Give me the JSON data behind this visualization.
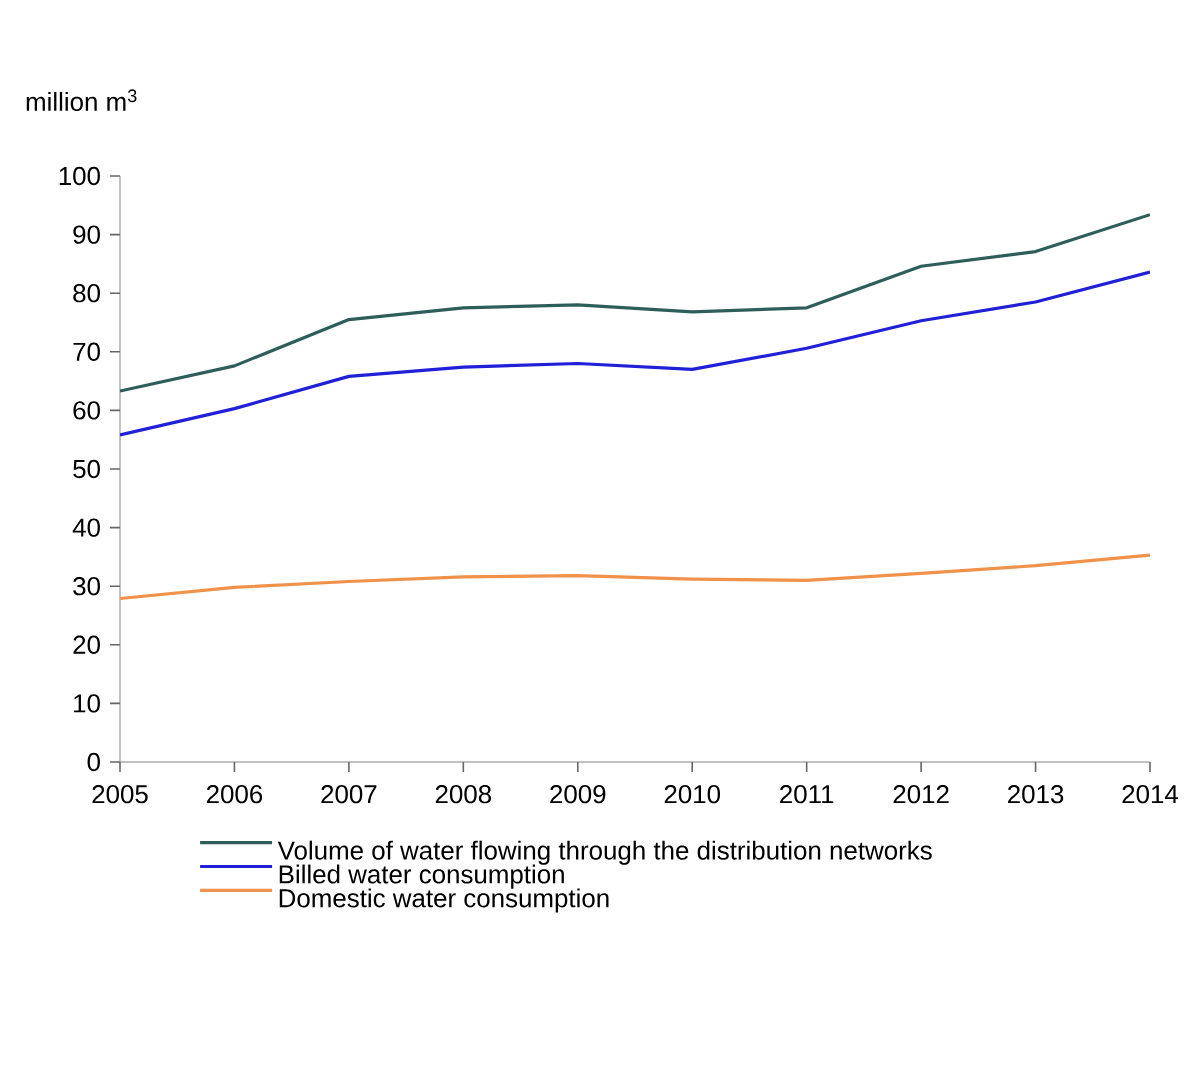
{
  "chart_data": {
    "type": "line",
    "ylabel": "million m$^{3}$",
    "categories": [
      "2005",
      "2006",
      "2007",
      "2008",
      "2009",
      "2010",
      "2011",
      "2012",
      "2013",
      "2014"
    ],
    "ylim": [
      0,
      100
    ],
    "yticks": [
      0,
      10,
      20,
      30,
      40,
      50,
      60,
      70,
      80,
      90,
      100
    ],
    "legend": "bottom",
    "grid": false,
    "series": [
      {
        "name": "Volume of water flowing through the distribution networks",
        "color": "#2e5e5a",
        "values": [
          63.3,
          67.6,
          75.5,
          77.5,
          78,
          76.8,
          77.5,
          84.6,
          87.1,
          93.4
        ]
      },
      {
        "name": "Billed water consumption",
        "color": "#2020d8",
        "values": [
          55.8,
          60.3,
          65.8,
          67.4,
          68,
          67,
          70.6,
          75.3,
          78.5,
          83.6
        ]
      },
      {
        "name": "Domestic water consumption",
        "color": "#f0924a",
        "values": [
          27.9,
          29.8,
          30.8,
          31.6,
          31.8,
          31.2,
          31,
          32.2,
          33.5,
          35.3
        ]
      }
    ]
  }
}
